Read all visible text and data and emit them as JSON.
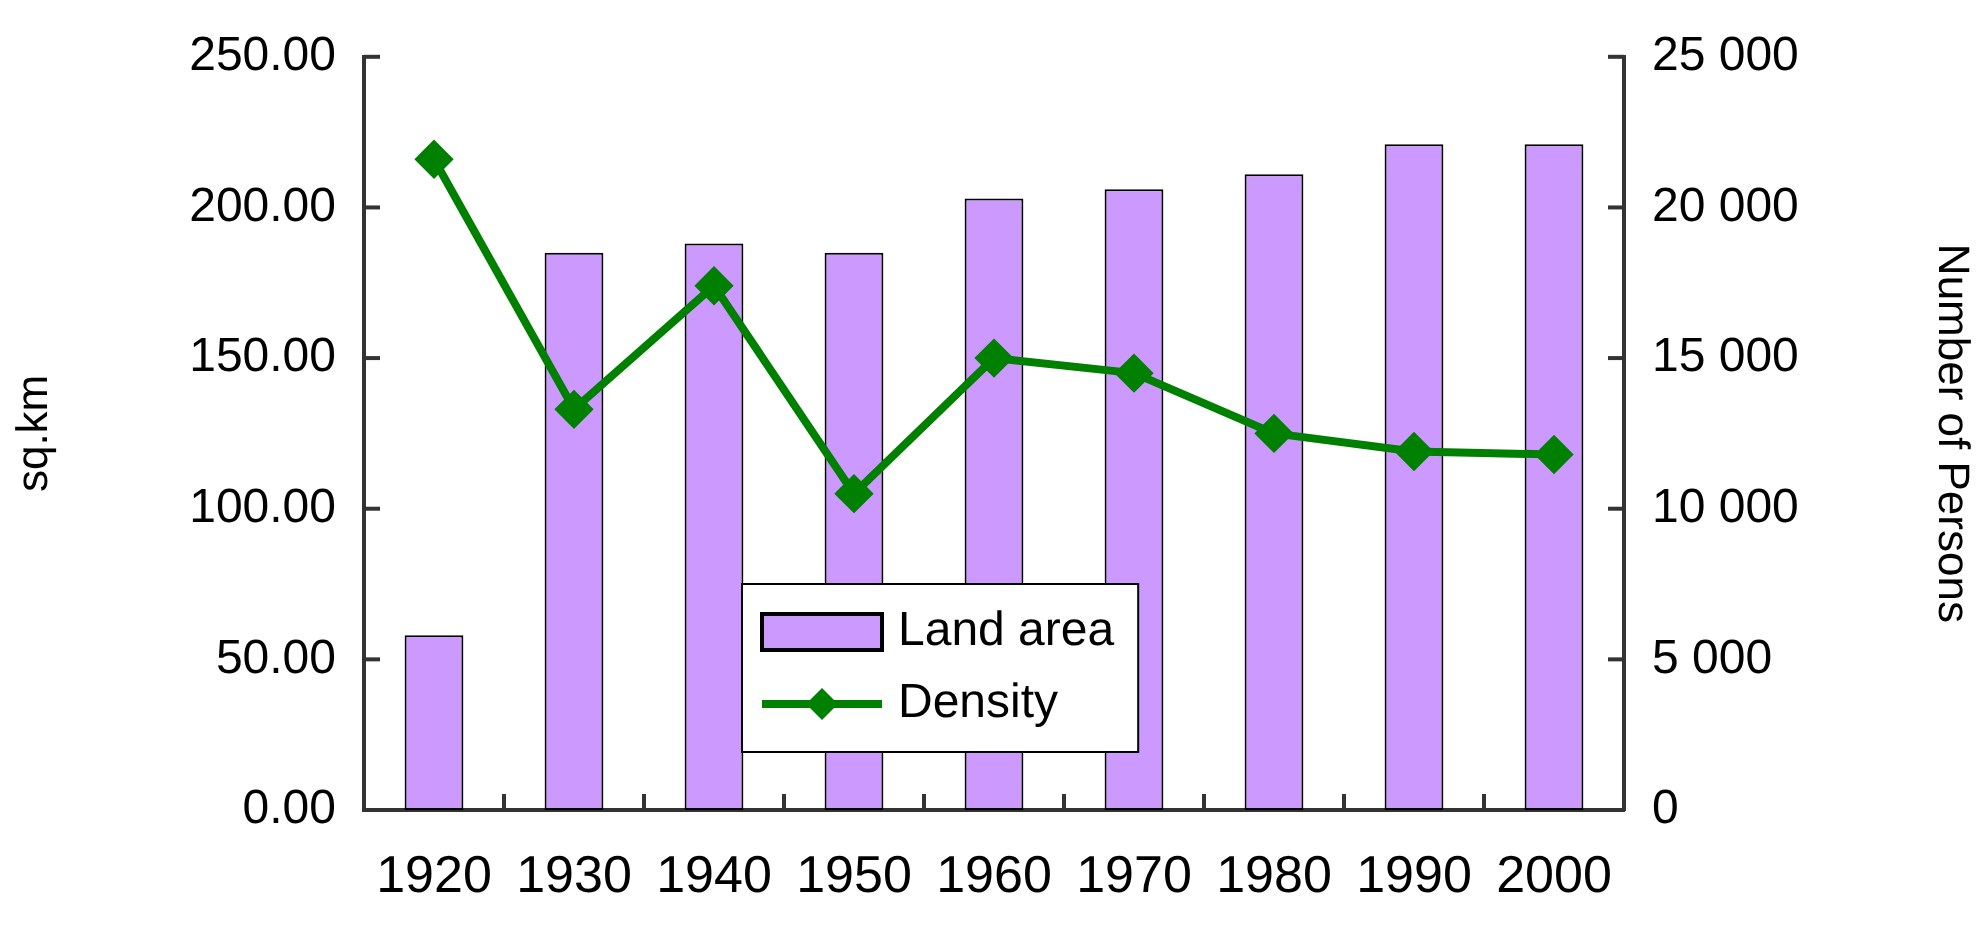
{
  "chart_data": {
    "type": "bar",
    "categories": [
      "1920",
      "1930",
      "1940",
      "1950",
      "1960",
      "1970",
      "1980",
      "1990",
      "2000"
    ],
    "series": [
      {
        "name": "Land area",
        "color": "#cc99ff",
        "values": [
          58,
          185,
          188,
          185,
          203,
          206,
          211,
          221,
          221
        ]
      },
      {
        "name": "Density",
        "type": "line",
        "axis": "y2",
        "color": "#008000",
        "marker": "diamond",
        "values": [
          21600,
          13300,
          17400,
          10500,
          15000,
          14500,
          12500,
          11900,
          11800
        ]
      }
    ],
    "ylabel": "sq.km",
    "y2label": "Number of Persons",
    "ylim": [
      0,
      250
    ],
    "yticks": [
      {
        "value": 0,
        "label": "0.00"
      },
      {
        "value": 50,
        "label": "50.00"
      },
      {
        "value": 100,
        "label": "100.00"
      },
      {
        "value": 150,
        "label": "150.00"
      },
      {
        "value": 200,
        "label": "200.00"
      },
      {
        "value": 250,
        "label": "250.00"
      }
    ],
    "y2lim": [
      0,
      25000
    ],
    "y2ticks": [
      {
        "value": 0,
        "label": "0"
      },
      {
        "value": 5000,
        "label": "5 000"
      },
      {
        "value": 10000,
        "label": "10 000"
      },
      {
        "value": 15000,
        "label": "15 000"
      },
      {
        "value": 20000,
        "label": "20 000"
      },
      {
        "value": 25000,
        "label": "25 000"
      }
    ],
    "grid": false,
    "legend": "bottom"
  }
}
